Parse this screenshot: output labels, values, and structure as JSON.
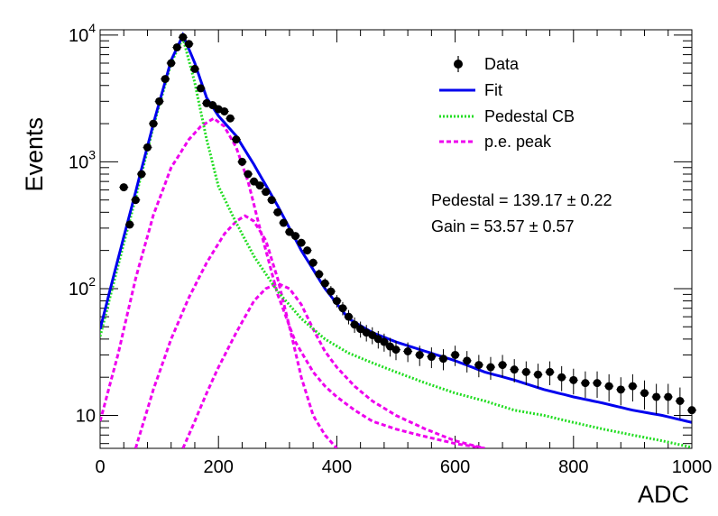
{
  "chart_data": {
    "type": "scatter",
    "title": "",
    "xlabel": "ADC",
    "ylabel": "Events",
    "xlim": [
      0,
      1000
    ],
    "ylim": [
      5.5,
      11000
    ],
    "yscale": "log",
    "x_ticks": [
      0,
      200,
      400,
      600,
      800,
      1000
    ],
    "x_tick_labels": [
      "0",
      "200",
      "400",
      "600",
      "800",
      "1000"
    ],
    "y_ticks": [
      10,
      100,
      1000,
      10000
    ],
    "y_tick_base": "10",
    "y_tick_exponents": [
      "",
      "2",
      "3",
      "4"
    ],
    "legend": {
      "position": "top-right",
      "entries": [
        {
          "label": "Data",
          "style": "marker",
          "color": "#000000"
        },
        {
          "label": "Fit",
          "style": "solid",
          "color": "#0000ee"
        },
        {
          "label": "Pedestal CB",
          "style": "dotted",
          "color": "#22dd22"
        },
        {
          "label": "p.e. peak",
          "style": "dashed",
          "color": "#ee00ee"
        }
      ]
    },
    "annotations": {
      "pedestal": "Pedestal = 139.17 ± 0.22",
      "gain": "Gain = 53.57 ± 0.57"
    },
    "fit_params": {
      "pedestal": 139.17,
      "gain": 53.57
    },
    "series": [
      {
        "name": "Data",
        "style": "points",
        "color": "#000000",
        "x": [
          40,
          50,
          60,
          70,
          80,
          90,
          100,
          110,
          120,
          130,
          140,
          150,
          160,
          170,
          180,
          190,
          200,
          210,
          220,
          230,
          240,
          250,
          260,
          270,
          280,
          290,
          300,
          310,
          320,
          330,
          340,
          350,
          360,
          370,
          380,
          390,
          400,
          410,
          420,
          430,
          440,
          450,
          460,
          470,
          480,
          490,
          500,
          520,
          540,
          560,
          580,
          600,
          620,
          640,
          660,
          680,
          700,
          720,
          740,
          760,
          780,
          800,
          820,
          840,
          860,
          880,
          900,
          920,
          940,
          960,
          980,
          1000
        ],
        "y": [
          630,
          320,
          500,
          800,
          1300,
          2000,
          3000,
          4500,
          6000,
          8000,
          9600,
          8500,
          5400,
          3800,
          2900,
          2800,
          2600,
          2500,
          2200,
          1500,
          1000,
          800,
          700,
          650,
          580,
          500,
          400,
          330,
          280,
          260,
          230,
          200,
          160,
          130,
          110,
          95,
          80,
          70,
          60,
          52,
          48,
          45,
          43,
          40,
          38,
          35,
          33,
          32,
          30,
          29,
          28,
          30,
          27,
          25,
          24,
          25,
          23,
          22,
          21,
          22,
          20,
          19,
          18,
          18,
          17,
          16,
          17,
          15,
          14,
          14,
          13,
          11
        ]
      },
      {
        "name": "Fit",
        "style": "solid",
        "color": "#0000ee",
        "x": [
          0,
          30,
          60,
          90,
          120,
          140,
          160,
          180,
          200,
          230,
          260,
          300,
          340,
          380,
          420,
          460,
          500,
          550,
          600,
          650,
          700,
          750,
          800,
          850,
          900,
          950,
          1000
        ],
        "y": [
          48,
          170,
          580,
          2000,
          6300,
          10000,
          6000,
          3200,
          2300,
          1600,
          950,
          450,
          200,
          100,
          58,
          45,
          38,
          32,
          27,
          22,
          19,
          16,
          14,
          12.5,
          11,
          10,
          8.8
        ]
      },
      {
        "name": "Pedestal CB",
        "style": "dotted",
        "color": "#22dd22",
        "x": [
          0,
          30,
          60,
          90,
          120,
          140,
          160,
          180,
          200,
          230,
          260,
          300,
          340,
          380,
          420,
          460,
          500,
          550,
          600,
          650,
          700,
          750,
          800,
          850,
          900,
          950,
          1000
        ],
        "y": [
          42,
          150,
          520,
          1900,
          6000,
          9500,
          4200,
          1500,
          640,
          330,
          180,
          95,
          58,
          40,
          31,
          26,
          22,
          18,
          15,
          13,
          11,
          10,
          8.8,
          7.8,
          7,
          6.3,
          5.6
        ]
      },
      {
        "name": "p.e. peak 1",
        "style": "dashed",
        "color": "#ee00ee",
        "x": [
          0,
          30,
          60,
          90,
          120,
          150,
          170,
          192,
          210,
          230,
          250,
          270,
          300,
          330,
          360,
          380,
          400,
          430,
          460,
          500,
          550,
          600,
          650
        ],
        "y": [
          9,
          30,
          120,
          380,
          900,
          1500,
          1900,
          2200,
          1900,
          1300,
          700,
          300,
          90,
          38,
          22,
          17,
          14,
          11,
          9,
          7.8,
          6.8,
          6,
          5.5
        ]
      },
      {
        "name": "p.e. peak 2",
        "style": "dashed",
        "color": "#ee00ee",
        "x": [
          60,
          90,
          120,
          150,
          180,
          210,
          230,
          245,
          260,
          280,
          300,
          320,
          340,
          360,
          380,
          400
        ],
        "y": [
          5.5,
          16,
          40,
          85,
          160,
          270,
          340,
          375,
          340,
          240,
          120,
          50,
          20,
          10,
          7,
          5.5
        ]
      },
      {
        "name": "p.e. peak 3",
        "style": "dashed",
        "color": "#ee00ee",
        "x": [
          140,
          160,
          180,
          200,
          230,
          260,
          280,
          300,
          320,
          340,
          360,
          380,
          400,
          430,
          460,
          500,
          550,
          600,
          650
        ],
        "y": [
          5.5,
          9,
          15,
          24,
          45,
          80,
          100,
          110,
          100,
          75,
          48,
          32,
          24,
          17,
          13,
          10,
          7.8,
          6.3,
          5.5
        ]
      }
    ]
  }
}
